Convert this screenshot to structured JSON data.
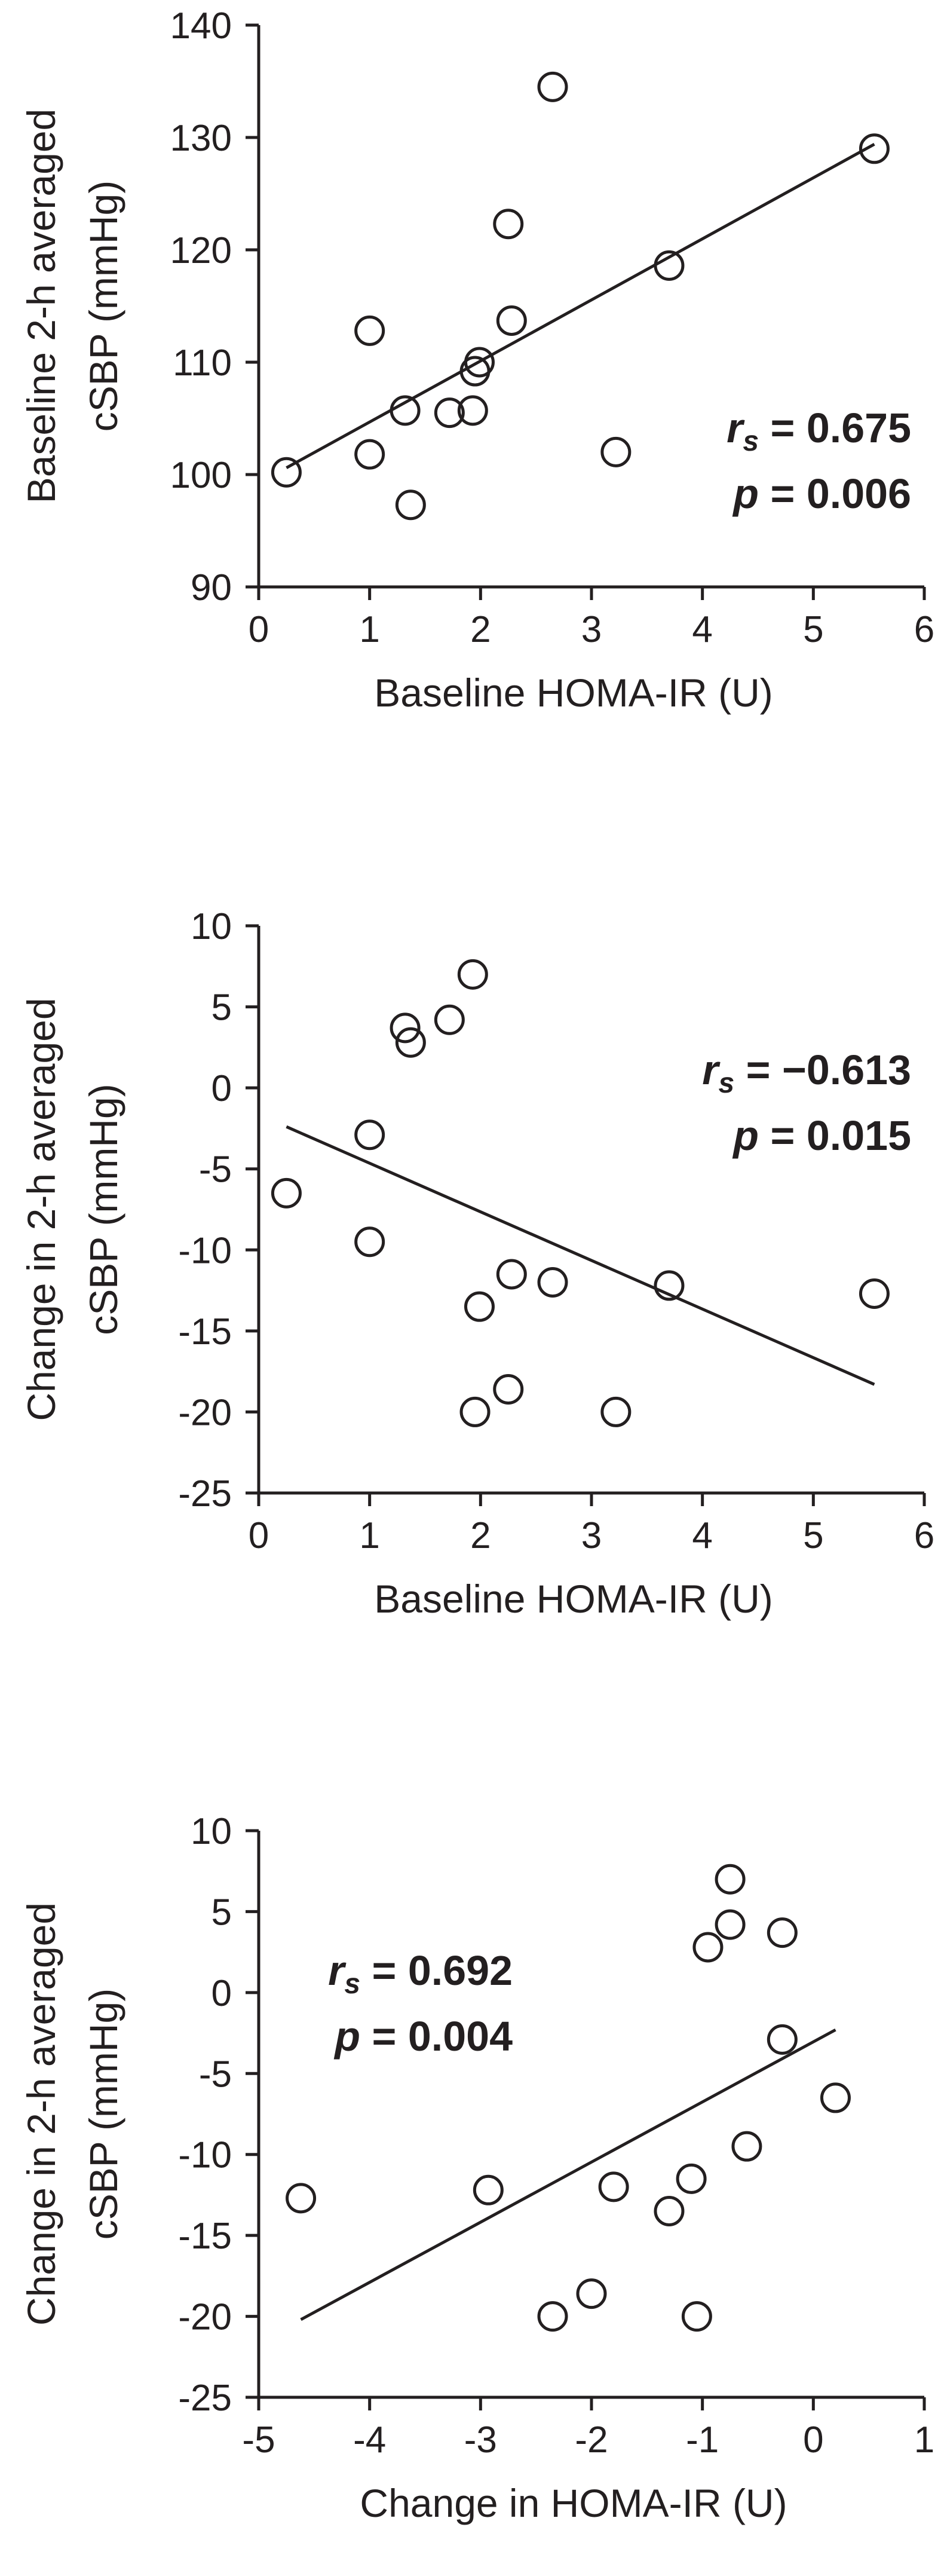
{
  "chart_data": [
    {
      "type": "scatter",
      "xlabel": "Baseline HOMA-IR (U)",
      "ylabel_lines": [
        "Baseline 2-h averaged",
        "cSBP  (mmHg)"
      ],
      "xlim": [
        0,
        6
      ],
      "ylim": [
        90,
        140
      ],
      "xticks": [
        0,
        1,
        2,
        3,
        4,
        5,
        6
      ],
      "yticks": [
        90,
        100,
        110,
        120,
        130,
        140
      ],
      "points": [
        [
          0.25,
          100.2
        ],
        [
          1.0,
          112.8
        ],
        [
          1.0,
          101.8
        ],
        [
          1.32,
          105.7
        ],
        [
          1.37,
          97.3
        ],
        [
          1.72,
          105.5
        ],
        [
          1.93,
          105.7
        ],
        [
          1.95,
          109.2
        ],
        [
          1.99,
          110.0
        ],
        [
          2.25,
          122.3
        ],
        [
          2.28,
          113.7
        ],
        [
          2.65,
          134.5
        ],
        [
          3.22,
          102.0
        ],
        [
          3.7,
          118.6
        ],
        [
          5.55,
          129.0
        ]
      ],
      "trend": {
        "x": [
          0.25,
          5.55
        ],
        "y": [
          100.6,
          129.4
        ]
      },
      "stats": {
        "r_symbol": "r",
        "r_sub": "s",
        "r_value": " = 0.675",
        "p_symbol": "p",
        "p_value": " = 0.006"
      },
      "stats_anchor": "bottom-right",
      "grid": false
    },
    {
      "type": "scatter",
      "xlabel": "Baseline HOMA-IR (U)",
      "ylabel_lines": [
        "Change in 2-h averaged",
        "cSBP  (mmHg)"
      ],
      "xlim": [
        0,
        6
      ],
      "ylim": [
        -25,
        10
      ],
      "xticks": [
        0,
        1,
        2,
        3,
        4,
        5,
        6
      ],
      "yticks": [
        -25,
        -20,
        -15,
        -10,
        -5,
        0,
        5,
        10
      ],
      "points": [
        [
          0.25,
          -6.5
        ],
        [
          1.0,
          -2.9
        ],
        [
          1.0,
          -9.5
        ],
        [
          1.32,
          3.7
        ],
        [
          1.37,
          2.8
        ],
        [
          1.72,
          4.2
        ],
        [
          1.93,
          7.0
        ],
        [
          1.95,
          -20.0
        ],
        [
          1.99,
          -13.5
        ],
        [
          2.25,
          -18.6
        ],
        [
          2.28,
          -11.5
        ],
        [
          2.65,
          -12.0
        ],
        [
          3.22,
          -20.0
        ],
        [
          3.7,
          -12.2
        ],
        [
          5.55,
          -12.7
        ]
      ],
      "trend": {
        "x": [
          0.25,
          5.55
        ],
        "y": [
          -2.4,
          -18.3
        ]
      },
      "stats": {
        "r_symbol": "r",
        "r_sub": "s",
        "r_value": " = −0.613",
        "p_symbol": "p",
        "p_value": " = 0.015"
      },
      "stats_anchor": "top-right",
      "grid": false
    },
    {
      "type": "scatter",
      "xlabel": "Change in HOMA-IR (U)",
      "ylabel_lines": [
        "Change in 2-h averaged",
        "cSBP  (mmHg)"
      ],
      "xlim": [
        -5,
        1
      ],
      "ylim": [
        -25,
        10
      ],
      "xticks": [
        -5,
        -4,
        -3,
        -2,
        -1,
        0,
        1
      ],
      "yticks": [
        -25,
        -20,
        -15,
        -10,
        -5,
        0,
        5,
        10
      ],
      "points": [
        [
          -4.62,
          -12.7
        ],
        [
          -2.93,
          -12.2
        ],
        [
          -2.35,
          -20.0
        ],
        [
          -2.0,
          -18.6
        ],
        [
          -1.8,
          -12.0
        ],
        [
          -1.3,
          -13.5
        ],
        [
          -1.1,
          -11.5
        ],
        [
          -1.05,
          -20.0
        ],
        [
          -0.95,
          2.8
        ],
        [
          -0.75,
          7.0
        ],
        [
          -0.75,
          4.2
        ],
        [
          -0.6,
          -9.5
        ],
        [
          -0.28,
          3.7
        ],
        [
          -0.28,
          -2.9
        ],
        [
          0.2,
          -6.5
        ]
      ],
      "trend": {
        "x": [
          -4.62,
          0.2
        ],
        "y": [
          -20.2,
          -2.3
        ]
      },
      "stats": {
        "r_symbol": "r",
        "r_sub": "s",
        "r_value": " = 0.692",
        "p_symbol": "p",
        "p_value": " = 0.004"
      },
      "stats_anchor": "top-left",
      "grid": false
    }
  ]
}
